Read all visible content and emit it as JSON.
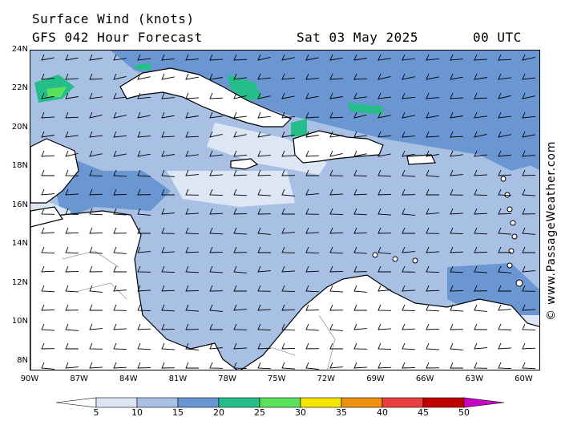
{
  "header": {
    "title": "Surface Wind (knots)",
    "subtitle": "GFS 042 Hour Forecast",
    "date": "Sat 03 May 2025",
    "time": "00 UTC"
  },
  "copyright": "© www.PassageWeather.com",
  "map": {
    "lon_range": [
      -90,
      -59
    ],
    "lat_range": [
      7.5,
      24
    ],
    "lat_ticks": [
      "24N",
      "22N",
      "20N",
      "18N",
      "16N",
      "14N",
      "12N",
      "10N",
      "8N"
    ],
    "lat_values": [
      24,
      22,
      20,
      18,
      16,
      14,
      12,
      10,
      8
    ],
    "lon_ticks": [
      "90W",
      "87W",
      "84W",
      "81W",
      "78W",
      "75W",
      "72W",
      "69W",
      "66W",
      "63W",
      "60W"
    ],
    "lon_values": [
      -90,
      -87,
      -84,
      -81,
      -78,
      -75,
      -72,
      -69,
      -66,
      -63,
      -60
    ],
    "colors": {
      "land": "#ffffff",
      "wind_5_10": "#dde6f5",
      "wind_10_15": "#a8c0e4",
      "wind_15_20": "#6a96d2",
      "wind_20_25": "#25be8a",
      "wind_25_30": "#5ae05a",
      "coast": "#000000",
      "border": "#9a9a9a",
      "barb": "#000000"
    }
  },
  "colorbar": {
    "labels": [
      "5",
      "10",
      "15",
      "20",
      "25",
      "30",
      "35",
      "40",
      "45",
      "50"
    ],
    "colors": [
      "#ffffff",
      "#dde6f5",
      "#a8c0e4",
      "#6a96d2",
      "#25be8a",
      "#5ae05a",
      "#f5e600",
      "#f09010",
      "#e84040",
      "#c00000",
      "#c800c8"
    ]
  }
}
